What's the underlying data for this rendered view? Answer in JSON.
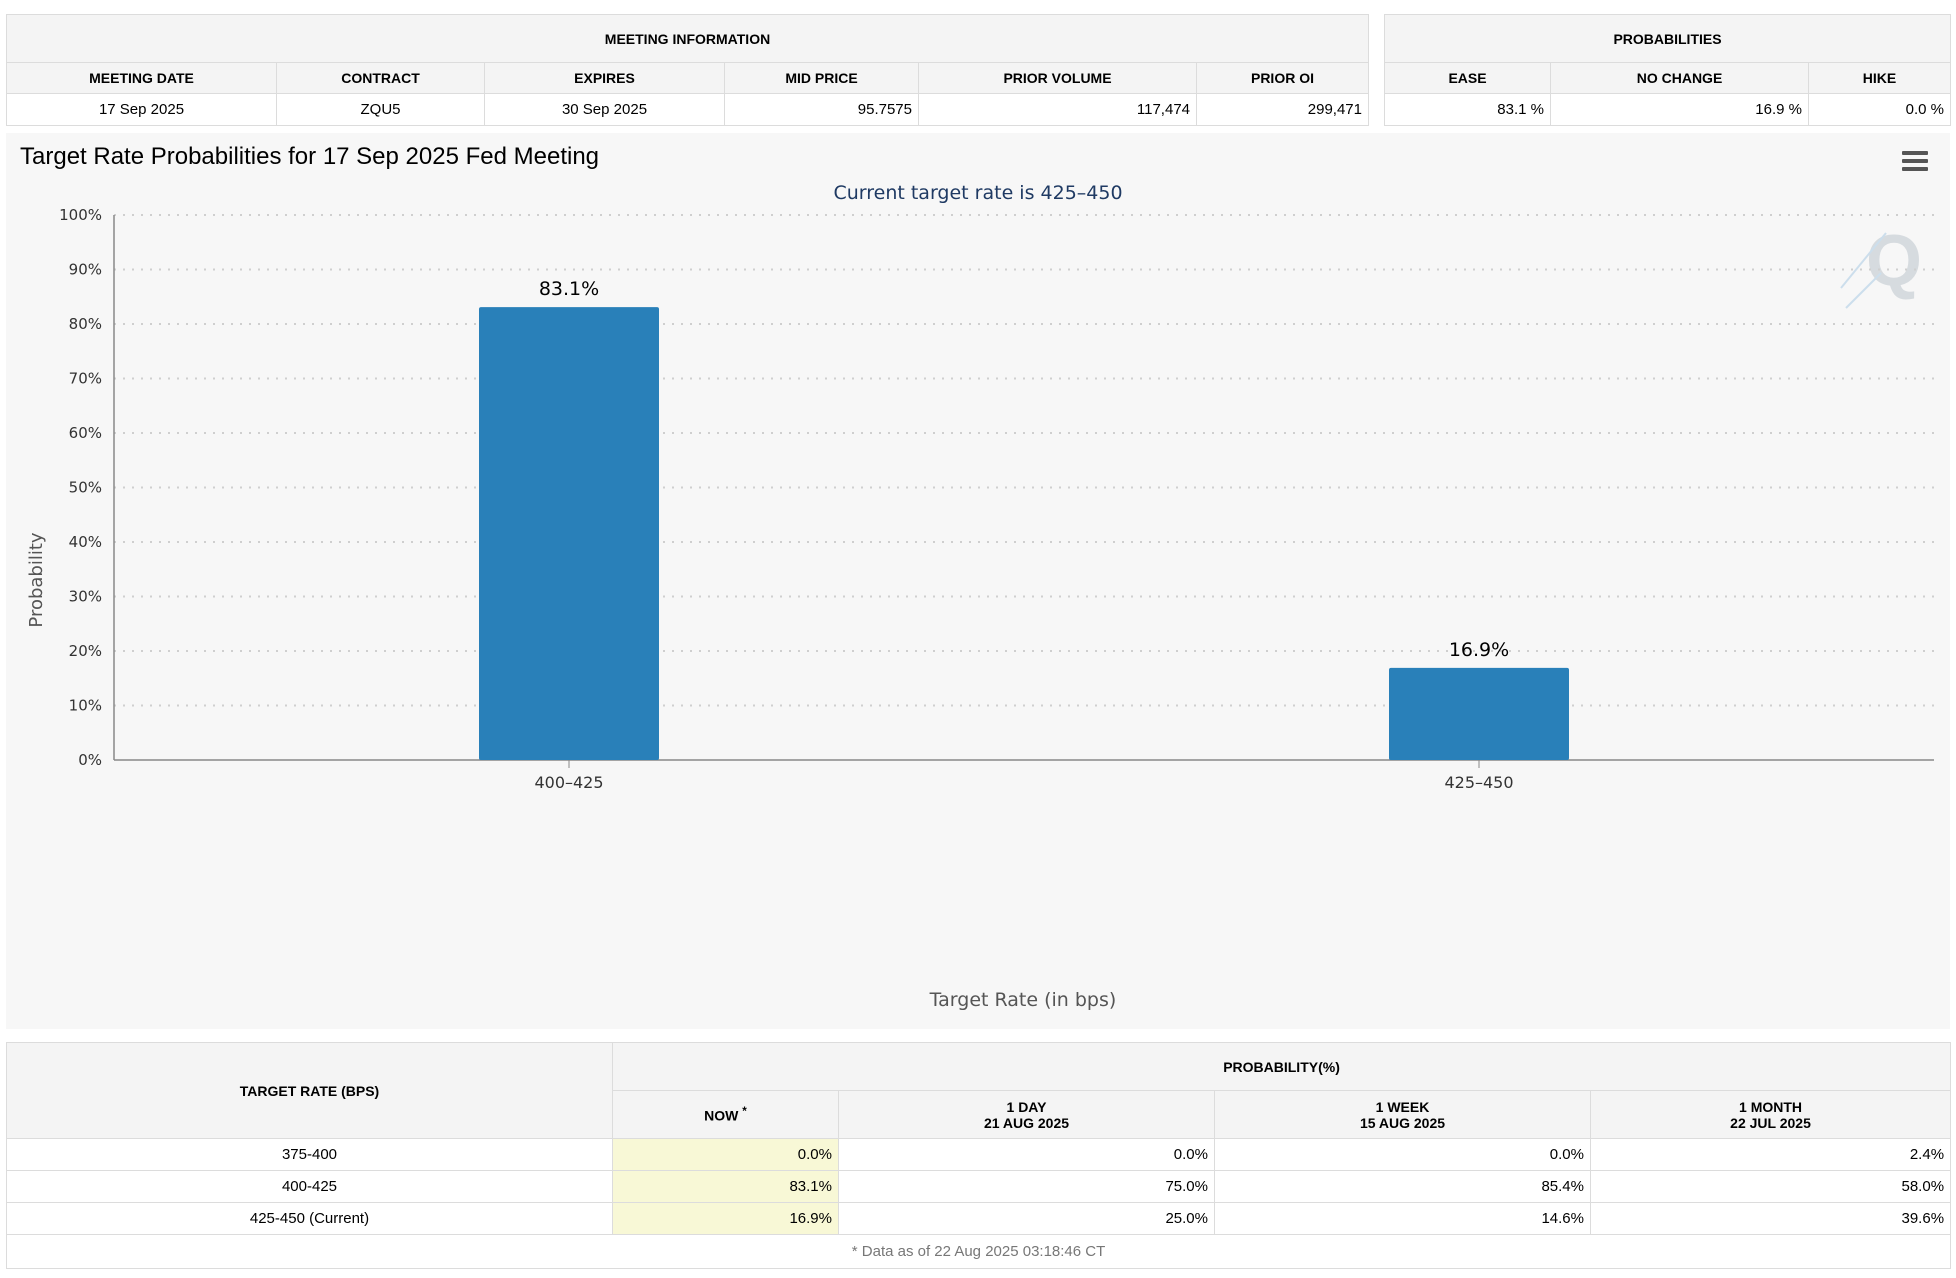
{
  "meeting_info": {
    "header": "MEETING INFORMATION",
    "columns": [
      "MEETING DATE",
      "CONTRACT",
      "EXPIRES",
      "MID PRICE",
      "PRIOR VOLUME",
      "PRIOR OI"
    ],
    "row": [
      "17 Sep 2025",
      "ZQU5",
      "30 Sep 2025",
      "95.7575",
      "117,474",
      "299,471"
    ]
  },
  "probabilities": {
    "header": "PROBABILITIES",
    "columns": [
      "EASE",
      "NO CHANGE",
      "HIKE"
    ],
    "row": [
      "83.1 %",
      "16.9 %",
      "0.0 %"
    ]
  },
  "chart": {
    "title": "Target Rate Probabilities for 17 Sep 2025 Fed Meeting",
    "menu_icon": "hamburger-menu-icon",
    "watermark_icon": "q-logo-icon"
  },
  "chart_data": {
    "type": "bar",
    "title": "Target Rate Probabilities for 17 Sep 2025 Fed Meeting",
    "subtitle": "Current target rate is 425–450",
    "categories": [
      "400–425",
      "425–450"
    ],
    "values": [
      83.1,
      16.9
    ],
    "data_labels": [
      "83.1%",
      "16.9%"
    ],
    "xlabel": "Target Rate (in bps)",
    "ylabel": "Probability",
    "ylim": [
      0,
      100
    ],
    "yticks": [
      "0%",
      "10%",
      "20%",
      "30%",
      "40%",
      "50%",
      "60%",
      "70%",
      "80%",
      "90%",
      "100%"
    ],
    "grid": true,
    "bar_color": "#2980b9"
  },
  "history": {
    "target_rate_header": "TARGET RATE (BPS)",
    "prob_header": "PROBABILITY(%)",
    "now_label": "NOW",
    "now_marker": "*",
    "col_1day": [
      "1 DAY",
      "21 AUG 2025"
    ],
    "col_1week": [
      "1 WEEK",
      "15 AUG 2025"
    ],
    "col_1month": [
      "1 MONTH",
      "22 JUL 2025"
    ],
    "rows": [
      {
        "rate": "375-400",
        "now": "0.0%",
        "day": "0.0%",
        "week": "0.0%",
        "month": "2.4%"
      },
      {
        "rate": "400-425",
        "now": "83.1%",
        "day": "75.0%",
        "week": "85.4%",
        "month": "58.0%"
      },
      {
        "rate": "425-450 (Current)",
        "now": "16.9%",
        "day": "25.0%",
        "week": "14.6%",
        "month": "39.6%"
      }
    ],
    "footer": "* Data as of 22 Aug 2025 03:18:46 CT"
  }
}
